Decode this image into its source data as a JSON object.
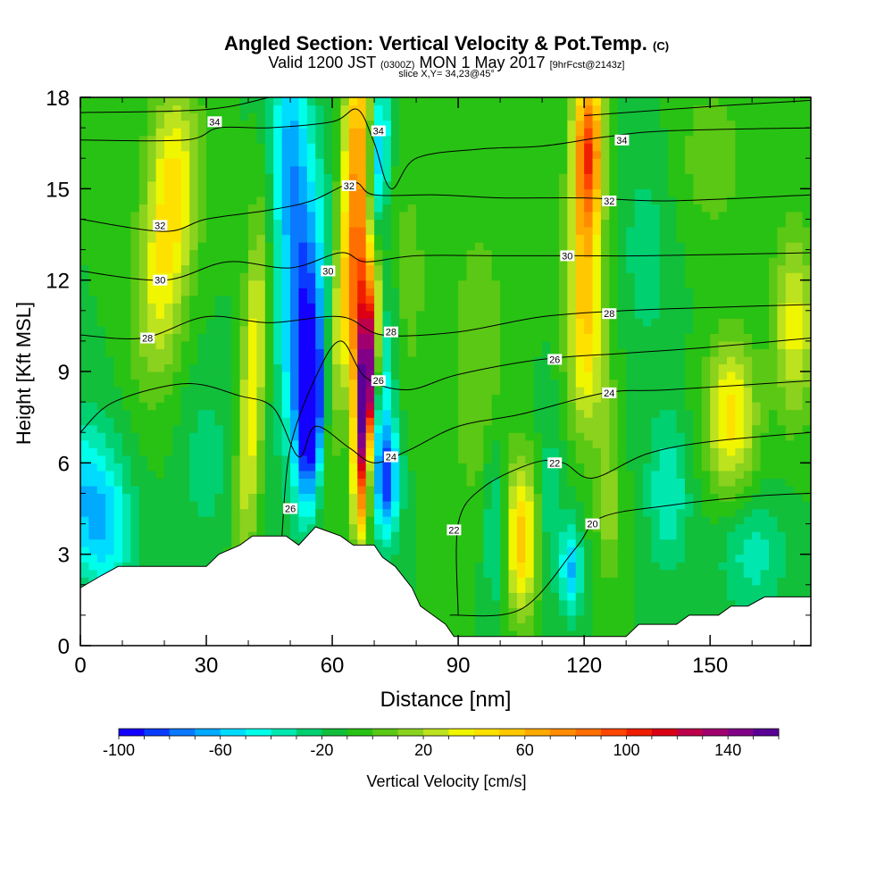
{
  "titles": {
    "main": "Angled Section: Vertical Velocity & Pot.Temp.",
    "main_suffix": "(C)",
    "valid_prefix": "Valid 1200 JST",
    "valid_utc": "(0300Z)",
    "valid_date": "MON 1 May 2017",
    "valid_fcst": "[9hrFcst@2143z]",
    "slice": "slice X,Y= 34,23@45°"
  },
  "chart_data": {
    "type": "heatmap",
    "xlabel": "Distance [nm]",
    "ylabel": "Height [Kft MSL]",
    "xlim": [
      0,
      174
    ],
    "ylim": [
      0,
      18
    ],
    "x_ticks": [
      0,
      30,
      60,
      90,
      120,
      150
    ],
    "x_tick_labels": [
      "0",
      "30",
      "60",
      "90",
      "120",
      "150"
    ],
    "y_ticks": [
      0,
      3,
      6,
      9,
      12,
      15,
      18
    ],
    "y_tick_labels": [
      "0",
      "3",
      "6",
      "9",
      "12",
      "15",
      "18"
    ],
    "colorbar": {
      "label": "Vertical Velocity [cm/s]",
      "min": -100,
      "max": 160,
      "step": 10,
      "tick_values": [
        -100,
        -60,
        -20,
        20,
        60,
        100,
        140
      ],
      "tick_labels": [
        "-100",
        "-60",
        "-20",
        "20",
        "60",
        "100",
        "140"
      ],
      "colors": [
        "#1400ff",
        "#0a3cff",
        "#0a78ff",
        "#00aaff",
        "#00dcff",
        "#00ffea",
        "#00e8b0",
        "#00d070",
        "#12bf3a",
        "#28c214",
        "#5ac814",
        "#8ad21e",
        "#bde31e",
        "#f0f500",
        "#ffe100",
        "#ffc800",
        "#ffaa00",
        "#ff8c00",
        "#ff6e00",
        "#ff4600",
        "#f01e00",
        "#dc0014",
        "#be004b",
        "#a0006e",
        "#820087",
        "#5a0096"
      ]
    },
    "terrain_height_kft": [
      [
        0,
        1.9
      ],
      [
        5,
        2.3
      ],
      [
        9,
        2.6
      ],
      [
        22,
        2.6
      ],
      [
        30,
        2.6
      ],
      [
        33,
        3.0
      ],
      [
        38,
        3.3
      ],
      [
        41,
        3.6
      ],
      [
        49,
        3.6
      ],
      [
        52,
        3.3
      ],
      [
        56,
        3.9
      ],
      [
        62,
        3.6
      ],
      [
        65,
        3.3
      ],
      [
        70,
        3.3
      ],
      [
        72,
        2.9
      ],
      [
        75,
        2.6
      ],
      [
        79,
        1.9
      ],
      [
        81,
        1.3
      ],
      [
        84,
        1.0
      ],
      [
        87,
        0.7
      ],
      [
        89,
        0.3
      ],
      [
        130,
        0.3
      ],
      [
        133,
        0.7
      ],
      [
        142,
        0.7
      ],
      [
        145,
        1.0
      ],
      [
        152,
        1.0
      ],
      [
        155,
        1.3
      ],
      [
        159,
        1.3
      ],
      [
        163,
        1.6
      ],
      [
        174,
        1.6
      ]
    ],
    "velocity_features": [
      {
        "x": 1,
        "z": 5.0,
        "w": -45,
        "sx": 8,
        "sz": 2.5,
        "tilt": 0
      },
      {
        "x": 7,
        "z": 3.5,
        "w": -30,
        "sx": 6,
        "sz": 2.0,
        "tilt": 0
      },
      {
        "x": 22,
        "z": 15.0,
        "w": 55,
        "sx": 6,
        "sz": 3.5,
        "tilt": 0.25
      },
      {
        "x": 18,
        "z": 11.0,
        "w": 30,
        "sx": 6,
        "sz": 3.0,
        "tilt": 0.2
      },
      {
        "x": 30,
        "z": 6.0,
        "w": -15,
        "sx": 6,
        "sz": 3.0,
        "tilt": 0
      },
      {
        "x": 41,
        "z": 8.5,
        "w": 50,
        "sx": 3,
        "sz": 6.0,
        "tilt": 0.35
      },
      {
        "x": 50,
        "z": 16.0,
        "w": -55,
        "sx": 5,
        "sz": 4.0,
        "tilt": 0
      },
      {
        "x": 53,
        "z": 11.0,
        "w": -65,
        "sx": 5,
        "sz": 4.0,
        "tilt": 0.5
      },
      {
        "x": 55,
        "z": 7.5,
        "w": -100,
        "sx": 3.5,
        "sz": 3.0,
        "tilt": 0.3
      },
      {
        "x": 60,
        "z": 9.0,
        "w": 30,
        "sx": 2.5,
        "sz": 5.0,
        "tilt": 0.4
      },
      {
        "x": 66,
        "z": 16.5,
        "w": 75,
        "sx": 3.5,
        "sz": 4.0,
        "tilt": 0.2
      },
      {
        "x": 66,
        "z": 12.0,
        "w": 80,
        "sx": 3.5,
        "sz": 3.0,
        "tilt": 0.5
      },
      {
        "x": 68,
        "z": 9.5,
        "w": 135,
        "sx": 2.5,
        "sz": 2.5,
        "tilt": 0.5
      },
      {
        "x": 68,
        "z": 7.5,
        "w": 110,
        "sx": 2.0,
        "sz": 2.0,
        "tilt": 0.5
      },
      {
        "x": 67,
        "z": 5.0,
        "w": 70,
        "sx": 2.0,
        "sz": 2.0,
        "tilt": 0.2
      },
      {
        "x": 73,
        "z": 5.5,
        "w": -75,
        "sx": 3.0,
        "sz": 2.0,
        "tilt": 0
      },
      {
        "x": 72,
        "z": 9.0,
        "w": -35,
        "sx": 3.0,
        "sz": 3.0,
        "tilt": 0.4
      },
      {
        "x": 71,
        "z": 16.0,
        "w": -60,
        "sx": 2.5,
        "sz": 3.0,
        "tilt": 0.3
      },
      {
        "x": 78,
        "z": 12.0,
        "w": 15,
        "sx": 5,
        "sz": 4.0,
        "tilt": 0
      },
      {
        "x": 95,
        "z": 9.0,
        "w": 20,
        "sx": 7,
        "sz": 5.0,
        "tilt": 0
      },
      {
        "x": 99,
        "z": 4.0,
        "w": -30,
        "sx": 3.0,
        "sz": 3.0,
        "tilt": 0
      },
      {
        "x": 105,
        "z": 3.5,
        "w": 65,
        "sx": 4.0,
        "sz": 2.5,
        "tilt": 0
      },
      {
        "x": 112,
        "z": 4.5,
        "w": -20,
        "sx": 3,
        "sz": 3.0,
        "tilt": 0
      },
      {
        "x": 117,
        "z": 2.5,
        "w": -50,
        "sx": 2.5,
        "sz": 1.5,
        "tilt": 0
      },
      {
        "x": 121,
        "z": 16.5,
        "w": 90,
        "sx": 3.5,
        "sz": 2.5,
        "tilt": 0
      },
      {
        "x": 120,
        "z": 12.5,
        "w": 60,
        "sx": 4.0,
        "sz": 4.0,
        "tilt": 0.1
      },
      {
        "x": 122,
        "z": 9.0,
        "w": 25,
        "sx": 5.0,
        "sz": 3.0,
        "tilt": 0
      },
      {
        "x": 126,
        "z": 4.5,
        "w": 25,
        "sx": 3.0,
        "sz": 2.5,
        "tilt": 0
      },
      {
        "x": 135,
        "z": 13.0,
        "w": -15,
        "sx": 7,
        "sz": 4.0,
        "tilt": 0
      },
      {
        "x": 140,
        "z": 5.0,
        "w": -30,
        "sx": 5,
        "sz": 2.5,
        "tilt": 0
      },
      {
        "x": 155,
        "z": 7.5,
        "w": 55,
        "sx": 6,
        "sz": 2.5,
        "tilt": 0
      },
      {
        "x": 170,
        "z": 10.5,
        "w": 45,
        "sx": 5,
        "sz": 3.0,
        "tilt": 0
      },
      {
        "x": 160,
        "z": 3.0,
        "w": -25,
        "sx": 8,
        "sz": 2.0,
        "tilt": 0
      },
      {
        "x": 150,
        "z": 16.0,
        "w": 15,
        "sx": 10,
        "sz": 3.0,
        "tilt": 0
      }
    ],
    "background_velocity": -10,
    "isentropes_label_unit": "deg C",
    "isentropes": [
      {
        "theta": "20",
        "points": [
          [
            88,
            1.0
          ],
          [
            105,
            1.2
          ],
          [
            118,
            3.2
          ],
          [
            124,
            4.2
          ],
          [
            140,
            4.6
          ],
          [
            160,
            4.9
          ],
          [
            174,
            5.0
          ]
        ]
      },
      {
        "theta": "22",
        "points": [
          [
            90,
            1.0
          ],
          [
            90,
            4.0
          ],
          [
            96,
            5.2
          ],
          [
            108,
            6.0
          ],
          [
            115,
            6.0
          ],
          [
            122,
            5.5
          ],
          [
            135,
            6.3
          ],
          [
            150,
            6.7
          ],
          [
            174,
            7.0
          ]
        ]
      },
      {
        "theta": "24",
        "points": [
          [
            0,
            7.0
          ],
          [
            8,
            8.0
          ],
          [
            25,
            8.6
          ],
          [
            38,
            8.2
          ],
          [
            46,
            7.8
          ],
          [
            52,
            6.2
          ],
          [
            56,
            7.2
          ],
          [
            64,
            6.5
          ],
          [
            70,
            6.0
          ],
          [
            78,
            6.4
          ],
          [
            90,
            7.2
          ],
          [
            105,
            7.6
          ],
          [
            125,
            8.3
          ],
          [
            140,
            8.4
          ],
          [
            174,
            8.7
          ]
        ]
      },
      {
        "theta": "26",
        "points": [
          [
            48,
            3.6
          ],
          [
            50,
            6.5
          ],
          [
            56,
            8.8
          ],
          [
            62,
            10.0
          ],
          [
            68,
            8.8
          ],
          [
            78,
            8.4
          ],
          [
            90,
            8.9
          ],
          [
            110,
            9.4
          ],
          [
            130,
            9.6
          ],
          [
            150,
            9.8
          ],
          [
            174,
            10.1
          ]
        ]
      },
      {
        "theta": "28",
        "points": [
          [
            0,
            10.2
          ],
          [
            15,
            10.1
          ],
          [
            30,
            10.8
          ],
          [
            45,
            10.6
          ],
          [
            62,
            10.8
          ],
          [
            72,
            10.2
          ],
          [
            90,
            10.3
          ],
          [
            110,
            10.8
          ],
          [
            130,
            11.0
          ],
          [
            150,
            11.1
          ],
          [
            174,
            11.2
          ]
        ]
      },
      {
        "theta": "30",
        "points": [
          [
            0,
            12.3
          ],
          [
            20,
            12.0
          ],
          [
            35,
            12.6
          ],
          [
            50,
            12.4
          ],
          [
            62,
            12.9
          ],
          [
            68,
            12.6
          ],
          [
            80,
            12.8
          ],
          [
            100,
            12.8
          ],
          [
            120,
            12.8
          ],
          [
            135,
            12.8
          ],
          [
            174,
            12.9
          ]
        ]
      },
      {
        "theta": "32",
        "points": [
          [
            0,
            14.0
          ],
          [
            20,
            13.6
          ],
          [
            30,
            14.0
          ],
          [
            45,
            14.3
          ],
          [
            55,
            14.6
          ],
          [
            65,
            15.2
          ],
          [
            70,
            14.8
          ],
          [
            85,
            14.8
          ],
          [
            100,
            14.7
          ],
          [
            120,
            14.7
          ],
          [
            140,
            14.6
          ],
          [
            174,
            14.8
          ]
        ]
      },
      {
        "theta": "34",
        "points": [
          [
            0,
            16.6
          ],
          [
            25,
            16.6
          ],
          [
            33,
            17.0
          ],
          [
            45,
            17.0
          ],
          [
            60,
            17.2
          ],
          [
            66,
            17.6
          ],
          [
            70,
            16.5
          ],
          [
            74,
            15.0
          ],
          [
            80,
            16.0
          ],
          [
            95,
            16.3
          ],
          [
            110,
            16.4
          ],
          [
            125,
            16.7
          ],
          [
            140,
            16.9
          ],
          [
            174,
            17.0
          ]
        ]
      },
      {
        "theta": "",
        "points": [
          [
            0,
            17.5
          ],
          [
            30,
            17.6
          ],
          [
            45,
            18.0
          ]
        ]
      },
      {
        "theta": "",
        "points": [
          [
            120,
            17.4
          ],
          [
            150,
            17.7
          ],
          [
            174,
            17.9
          ]
        ]
      }
    ],
    "isentrope_labels": [
      {
        "text": "34",
        "x": 32,
        "z": 17.2
      },
      {
        "text": "34",
        "x": 71,
        "z": 16.9
      },
      {
        "text": "34",
        "x": 129,
        "z": 16.6
      },
      {
        "text": "32",
        "x": 19,
        "z": 13.8
      },
      {
        "text": "32",
        "x": 64,
        "z": 15.1
      },
      {
        "text": "32",
        "x": 126,
        "z": 14.6
      },
      {
        "text": "30",
        "x": 19,
        "z": 12.0
      },
      {
        "text": "30",
        "x": 59,
        "z": 12.3
      },
      {
        "text": "30",
        "x": 116,
        "z": 12.8
      },
      {
        "text": "28",
        "x": 16,
        "z": 10.1
      },
      {
        "text": "28",
        "x": 74,
        "z": 10.3
      },
      {
        "text": "28",
        "x": 126,
        "z": 10.9
      },
      {
        "text": "26",
        "x": 71,
        "z": 8.7
      },
      {
        "text": "26",
        "x": 113,
        "z": 9.4
      },
      {
        "text": "26",
        "x": 50,
        "z": 4.5
      },
      {
        "text": "24",
        "x": 74,
        "z": 6.2
      },
      {
        "text": "24",
        "x": 126,
        "z": 8.3
      },
      {
        "text": "22",
        "x": 113,
        "z": 6.0
      },
      {
        "text": "22",
        "x": 89,
        "z": 3.8
      },
      {
        "text": "20",
        "x": 122,
        "z": 4.0
      }
    ]
  }
}
